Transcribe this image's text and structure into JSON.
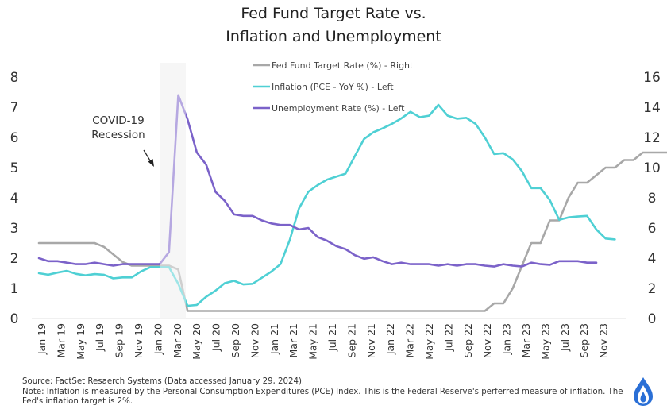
{
  "title_line1": "Fed Fund Target Rate vs.",
  "title_line2": "Inflation and Unemployment",
  "colors": {
    "fed": "#a8a8a8",
    "inflation": "#4fd0d4",
    "unemployment": "#7b62c9",
    "recession": "#eeeeee"
  },
  "footer": {
    "source": "Source: FactSet Resaerch Systems (Data accessed January 29, 2024).",
    "note": "Note: Inflation is measured by the Personal Consumption Expenditures (PCE) Index. This is the Federal Reserve's perferred measure of inflation. The Fed's inflation target is 2%."
  },
  "annotation": {
    "line1": "COVID-19",
    "line2": "Recession"
  },
  "logo_icon": "flame-drop-logo-icon",
  "chart_data": {
    "type": "line",
    "title": "Fed Fund Target Rate vs. Inflation and Unemployment",
    "left_axis": {
      "ylim": [
        0,
        8
      ],
      "ticks": [
        "0",
        "1",
        "2",
        "3",
        "4",
        "5",
        "6",
        "7",
        "8"
      ]
    },
    "right_axis": {
      "ylim": [
        0,
        16
      ],
      "ticks": [
        "0",
        "2",
        "4",
        "6",
        "8",
        "10",
        "12",
        "14",
        "16"
      ]
    },
    "x_tick_labels": [
      "Jan 19",
      "Mar 19",
      "May 19",
      "Jul 19",
      "Sep 19",
      "Nov 19",
      "Jan 20",
      "Mar 20",
      "May 20",
      "Jul 20",
      "Sep 20",
      "Nov 20",
      "Jan 21",
      "Mar 21",
      "May 21",
      "Jul 21",
      "Sep 21",
      "Nov 21",
      "Jan 22",
      "Mar 22",
      "May 22",
      "Jul 22",
      "Sep 22",
      "Nov 22",
      "Jan 23",
      "Mar 23",
      "May 23",
      "Jul 23",
      "Sep 23",
      "Nov 23"
    ],
    "recession": {
      "start_index": 13,
      "end_index": 15.8,
      "label": "COVID-19 Recession"
    },
    "legend": {
      "placement": "top-center"
    },
    "series": [
      {
        "name": "Fed Fund Target Rate (%) - Right",
        "axis": "right",
        "values": [
          5,
          5,
          5,
          5,
          5,
          5,
          5,
          4.75,
          4.25,
          3.75,
          3.5,
          3.5,
          3.5,
          3.5,
          3.5,
          3.25,
          0.5,
          0.5,
          0.5,
          0.5,
          0.5,
          0.5,
          0.5,
          0.5,
          0.5,
          0.5,
          0.5,
          0.5,
          0.5,
          0.5,
          0.5,
          0.5,
          0.5,
          0.5,
          0.5,
          0.5,
          0.5,
          0.5,
          0.5,
          0.5,
          0.5,
          0.5,
          0.5,
          0.5,
          0.5,
          0.5,
          0.5,
          0.5,
          0.5,
          1,
          1,
          2,
          3.5,
          5,
          5,
          6.5,
          6.5,
          8,
          9,
          9,
          9.5,
          10,
          10,
          10.5,
          10.5,
          11,
          11,
          11,
          11,
          11,
          11,
          11
        ]
      },
      {
        "name": "Inflation (PCE - YoY %) - Left",
        "axis": "left",
        "values": [
          1.5,
          1.45,
          1.52,
          1.58,
          1.48,
          1.43,
          1.47,
          1.45,
          1.33,
          1.36,
          1.36,
          1.56,
          1.7,
          1.7,
          1.7,
          1.15,
          0.42,
          0.45,
          0.72,
          0.92,
          1.17,
          1.25,
          1.13,
          1.15,
          1.35,
          1.55,
          1.8,
          2.6,
          3.65,
          4.2,
          4.42,
          4.6,
          4.7,
          4.8,
          5.38,
          5.95,
          6.17,
          6.3,
          6.45,
          6.63,
          6.85,
          6.67,
          6.72,
          7.08,
          6.72,
          6.62,
          6.65,
          6.45,
          6.0,
          5.45,
          5.48,
          5.27,
          4.88,
          4.32,
          4.32,
          3.92,
          3.27,
          3.35,
          3.38,
          3.4,
          2.95,
          2.65,
          2.62
        ]
      },
      {
        "name": "Unemployment Rate (%) - Left",
        "axis": "left",
        "values": [
          2.0,
          1.9,
          1.9,
          1.85,
          1.8,
          1.8,
          1.85,
          1.8,
          1.75,
          1.8,
          1.8,
          1.8,
          1.8,
          1.8,
          2.2,
          7.4,
          6.6,
          5.5,
          5.1,
          4.2,
          3.9,
          3.45,
          3.4,
          3.4,
          3.25,
          3.15,
          3.1,
          3.1,
          2.95,
          3.0,
          2.7,
          2.58,
          2.4,
          2.3,
          2.1,
          1.98,
          2.03,
          1.9,
          1.8,
          1.85,
          1.8,
          1.8,
          1.8,
          1.75,
          1.8,
          1.75,
          1.8,
          1.8,
          1.75,
          1.72,
          1.8,
          1.75,
          1.72,
          1.85,
          1.8,
          1.78,
          1.9,
          1.9,
          1.9,
          1.85,
          1.85
        ]
      }
    ]
  }
}
